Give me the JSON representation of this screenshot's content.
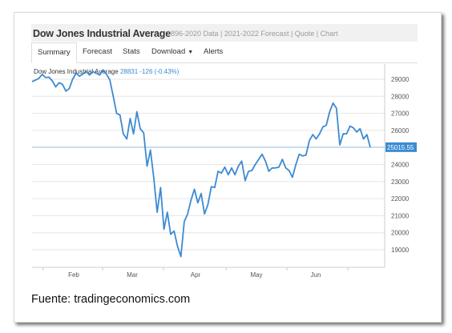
{
  "header": {
    "title": "Dow Jones Industrial Average",
    "subtitle": "1896-2020 Data | 2021-2022 Forecast | Quote | Chart"
  },
  "tabs": [
    {
      "label": "Summary"
    },
    {
      "label": "Forecast"
    },
    {
      "label": "Stats"
    },
    {
      "label": "Download"
    },
    {
      "label": "Alerts"
    }
  ],
  "legend": {
    "name": "Dow Jones Industrial Average",
    "value": "28831",
    "change": "-126 (-0.43%)"
  },
  "caption": "Fuente: tradingeconomics.com",
  "colors": {
    "line": "#3d8ad2",
    "marker_bg": "#3d8ad2",
    "grid": "#e6e6e6"
  },
  "chart_data": {
    "type": "line",
    "x_labels": [
      "Feb",
      "Mar",
      "Apr",
      "May",
      "Jun"
    ],
    "yticks": [
      19000,
      20000,
      21000,
      22000,
      23000,
      24000,
      25000,
      26000,
      27000,
      28000,
      29000
    ],
    "ylim": [
      18000,
      29500
    ],
    "last_value_label": "25015.55",
    "last_value": 25015.55,
    "grid": "horizontal",
    "series": [
      {
        "values": [
          28860,
          28950,
          29050,
          29280,
          29100,
          29120,
          28900,
          28550,
          28800,
          28700,
          28300,
          28450,
          29000,
          29350,
          29180,
          29300,
          29450,
          29250,
          29450,
          29350,
          29250,
          29550,
          29300,
          28950,
          28000,
          27000,
          26900,
          25800,
          25500,
          26700,
          25800,
          27100,
          26100,
          25850,
          23900,
          24850,
          23200,
          21200,
          22650,
          20200,
          21200,
          19900,
          20100,
          19200,
          18600,
          20650,
          21100,
          21900,
          22550,
          21750,
          22300,
          21100,
          21650,
          22700,
          22650,
          23600,
          23500,
          23850,
          23400,
          23800,
          23400,
          23900,
          24200,
          23050,
          23600,
          23650,
          24000,
          24300,
          24600,
          24200,
          23600,
          23800,
          23800,
          23850,
          24300,
          23800,
          23650,
          23250,
          24000,
          24600,
          24500,
          24550,
          25400,
          25750,
          25500,
          25800,
          26200,
          26300,
          27100,
          27600,
          27300,
          25150,
          25800,
          25800,
          26250,
          26150,
          25900,
          26100,
          25500,
          25750,
          25015.55
        ]
      }
    ]
  }
}
